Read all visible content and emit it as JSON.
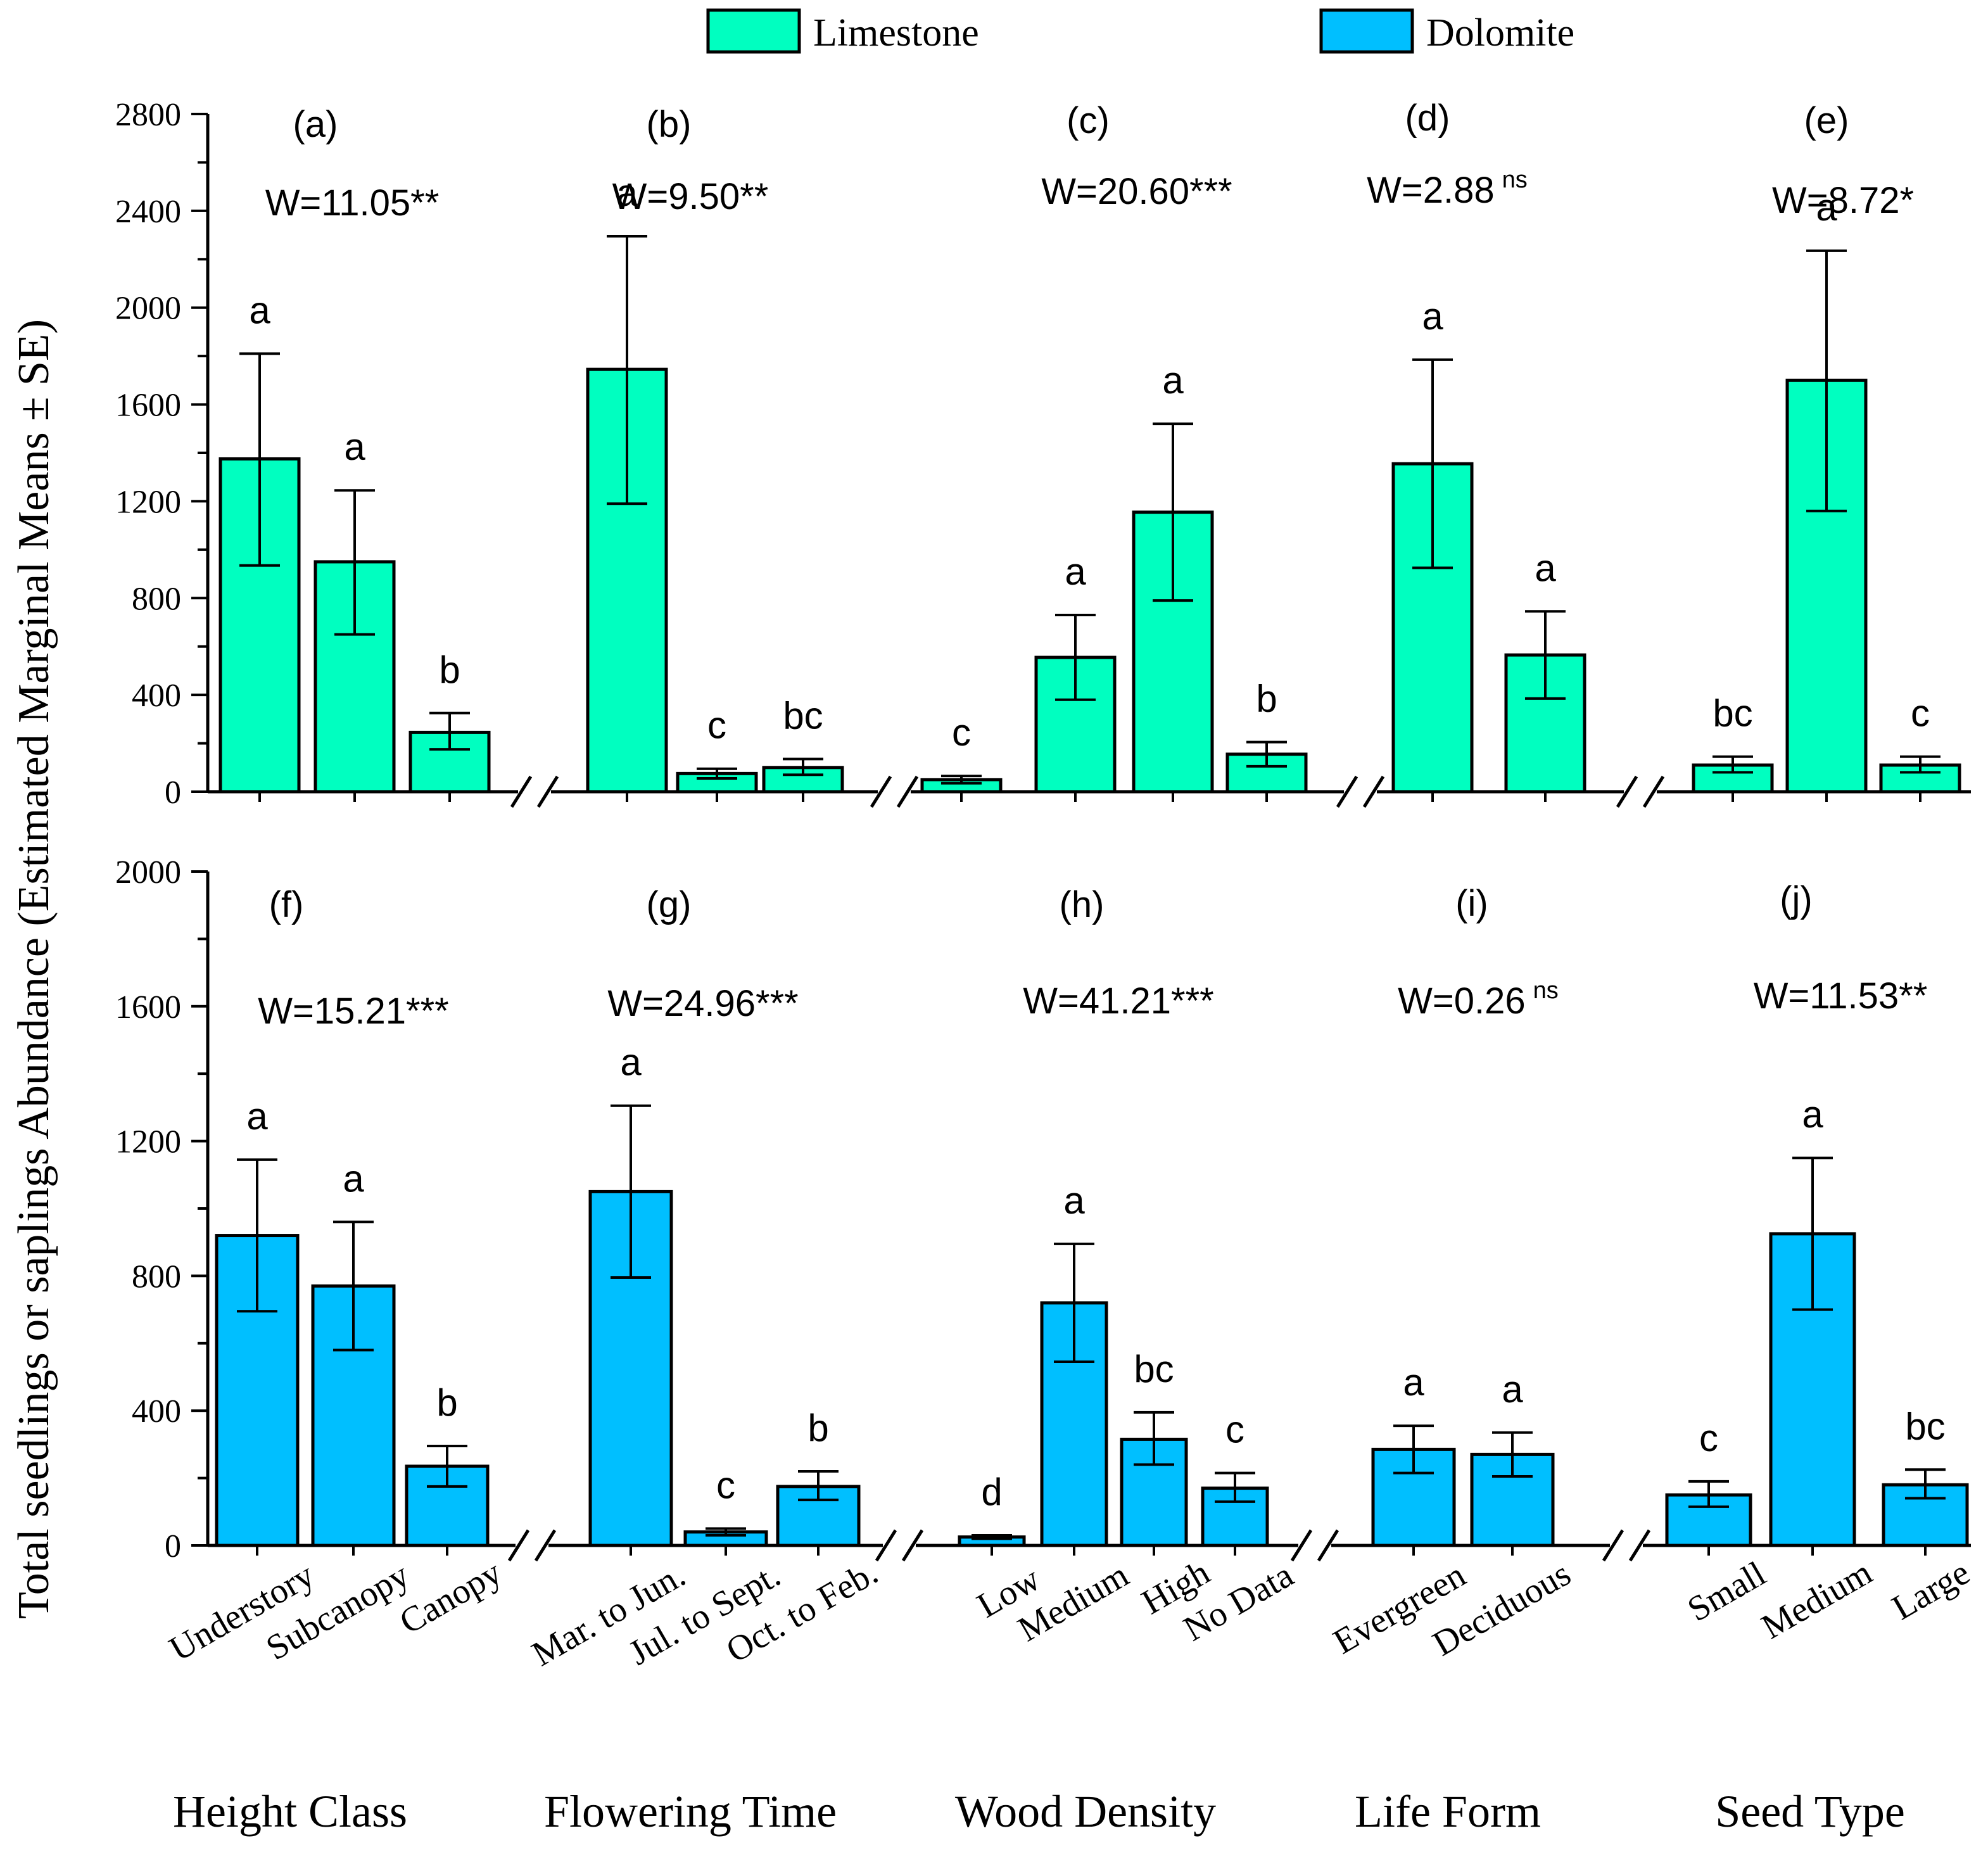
{
  "chart_data": [
    {
      "type": "bar",
      "panel": "top",
      "series_name": "Limestone",
      "color": "#00FFC0",
      "ylim": [
        0,
        2800
      ],
      "yticks": [
        "0",
        "400",
        "800",
        "1200",
        "1600",
        "2000",
        "2400",
        "2800"
      ],
      "groups": [
        {
          "panel_label": "(a)",
          "w_main": "W=11.05",
          "w_stars": "**",
          "bars": [
            {
              "category": "Understory",
              "value": 1375,
              "se_low": 935,
              "se_high": 1810,
              "letter": "a"
            },
            {
              "category": "Subcanopy",
              "value": 950,
              "se_low": 650,
              "se_high": 1245,
              "letter": "a"
            },
            {
              "category": "Canopy",
              "value": 245,
              "se_low": 175,
              "se_high": 325,
              "letter": "b"
            }
          ]
        },
        {
          "panel_label": "(b)",
          "w_main": "W=9.50",
          "w_stars": "**",
          "bars": [
            {
              "category": "Mar. to Jun.",
              "value": 1745,
              "se_low": 1190,
              "se_high": 2295,
              "letter": "a"
            },
            {
              "category": "Jul. to Sept.",
              "value": 75,
              "se_low": 55,
              "se_high": 95,
              "letter": "c"
            },
            {
              "category": "Oct. to Feb.",
              "value": 100,
              "se_low": 70,
              "se_high": 135,
              "letter": "bc"
            }
          ]
        },
        {
          "panel_label": "(c)",
          "w_main": "W=20.60",
          "w_stars": "***",
          "bars": [
            {
              "category": "Low",
              "value": 50,
              "se_low": 35,
              "se_high": 65,
              "letter": "c"
            },
            {
              "category": "Medium",
              "value": 555,
              "se_low": 380,
              "se_high": 730,
              "letter": "a"
            },
            {
              "category": "High",
              "value": 1155,
              "se_low": 790,
              "se_high": 1520,
              "letter": "a"
            },
            {
              "category": "No Data",
              "value": 155,
              "se_low": 105,
              "se_high": 205,
              "letter": "b"
            }
          ]
        },
        {
          "panel_label": "(d)",
          "w_main": "W=2.88",
          "w_sup": "ns",
          "bars": [
            {
              "category": "Evergreen",
              "value": 1355,
              "se_low": 925,
              "se_high": 1785,
              "letter": "a"
            },
            {
              "category": "Deciduous",
              "value": 565,
              "se_low": 385,
              "se_high": 745,
              "letter": "a"
            }
          ]
        },
        {
          "panel_label": "(e)",
          "w_main": "W=8.72",
          "w_stars": "*",
          "bars": [
            {
              "category": "Small",
              "value": 110,
              "se_low": 80,
              "se_high": 145,
              "letter": "bc"
            },
            {
              "category": "Medium",
              "value": 1700,
              "se_low": 1160,
              "se_high": 2235,
              "letter": "a"
            },
            {
              "category": "Large",
              "value": 110,
              "se_low": 80,
              "se_high": 145,
              "letter": "c"
            }
          ]
        }
      ]
    },
    {
      "type": "bar",
      "panel": "bottom",
      "series_name": "Dolomite",
      "color": "#00BFFF",
      "ylim": [
        0,
        2000
      ],
      "yticks": [
        "0",
        "400",
        "800",
        "1200",
        "1600",
        "2000"
      ],
      "groups": [
        {
          "panel_label": "(f)",
          "w_main": "W=15.21",
          "w_stars": "***",
          "bars": [
            {
              "category": "Understory",
              "value": 920,
              "se_low": 695,
              "se_high": 1145,
              "letter": "a"
            },
            {
              "category": "Subcanopy",
              "value": 770,
              "se_low": 580,
              "se_high": 960,
              "letter": "a"
            },
            {
              "category": "Canopy",
              "value": 235,
              "se_low": 175,
              "se_high": 295,
              "letter": "b"
            }
          ]
        },
        {
          "panel_label": "(g)",
          "w_main": "W=24.96",
          "w_stars": "***",
          "bars": [
            {
              "category": "Mar. to Jun.",
              "value": 1050,
              "se_low": 795,
              "se_high": 1305,
              "letter": "a"
            },
            {
              "category": "Jul. to Sept.",
              "value": 40,
              "se_low": 30,
              "se_high": 50,
              "letter": "c"
            },
            {
              "category": "Oct. to Feb.",
              "value": 175,
              "se_low": 135,
              "se_high": 220,
              "letter": "b"
            }
          ]
        },
        {
          "panel_label": "(h)",
          "w_main": "W=41.21",
          "w_stars": "***",
          "bars": [
            {
              "category": "Low",
              "value": 25,
              "se_low": 20,
              "se_high": 30,
              "letter": "d"
            },
            {
              "category": "Medium",
              "value": 720,
              "se_low": 545,
              "se_high": 895,
              "letter": "a"
            },
            {
              "category": "High",
              "value": 315,
              "se_low": 240,
              "se_high": 395,
              "letter": "bc"
            },
            {
              "category": "No Data",
              "value": 170,
              "se_low": 130,
              "se_high": 215,
              "letter": "c"
            }
          ]
        },
        {
          "panel_label": "(i)",
          "w_main": "W=0.26",
          "w_sup": "ns",
          "bars": [
            {
              "category": "Evergreen",
              "value": 285,
              "se_low": 215,
              "se_high": 355,
              "letter": "a"
            },
            {
              "category": "Deciduous",
              "value": 270,
              "se_low": 205,
              "se_high": 335,
              "letter": "a"
            }
          ]
        },
        {
          "panel_label": "(j)",
          "w_main": "W=11.53",
          "w_stars": "**",
          "bars": [
            {
              "category": "Small",
              "value": 150,
              "se_low": 115,
              "se_high": 190,
              "letter": "c"
            },
            {
              "category": "Medium",
              "value": 925,
              "se_low": 700,
              "se_high": 1150,
              "letter": "a"
            },
            {
              "category": "Large",
              "value": 180,
              "se_low": 140,
              "se_high": 225,
              "letter": "bc"
            }
          ]
        }
      ]
    }
  ],
  "legend": [
    {
      "label": "Limestone",
      "color": "#00FFC0"
    },
    {
      "label": "Dolomite",
      "color": "#00BFFF"
    }
  ],
  "ylabel": "Total seedlings or saplings  Abundance (Estimated  Marginal Means ± SE)",
  "group_titles": [
    "Height Class",
    "Flowering Time",
    "Wood Density",
    "Life Form",
    "Seed Type"
  ],
  "x_categories": [
    "Understory",
    "Subcanopy",
    "Canopy",
    "Mar. to Jun.",
    "Jul. to Sept.",
    "Oct. to Feb.",
    "Low",
    "Medium",
    "High",
    "No Data",
    "Evergreen",
    "Deciduous",
    "Small",
    "Medium",
    "Large"
  ]
}
